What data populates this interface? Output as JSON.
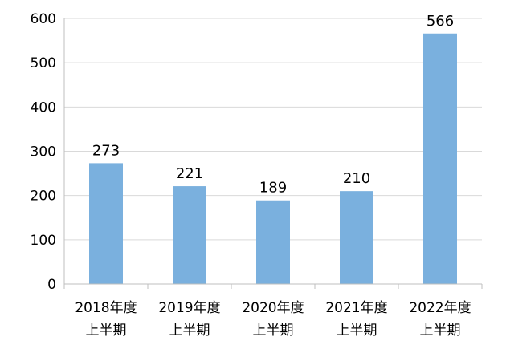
{
  "chart_data": {
    "type": "bar",
    "categories": [
      [
        "2018年度",
        "上半期"
      ],
      [
        "2019年度",
        "上半期"
      ],
      [
        "2020年度",
        "上半期"
      ],
      [
        "2021年度",
        "上半期"
      ],
      [
        "2022年度",
        "上半期"
      ]
    ],
    "values": [
      273,
      221,
      189,
      210,
      566
    ],
    "data_labels": [
      "273",
      "221",
      "189",
      "210",
      "566"
    ],
    "ylim": [
      0,
      600
    ],
    "yticks": [
      0,
      100,
      200,
      300,
      400,
      500,
      600
    ],
    "ytick_labels": [
      "0",
      "100",
      "200",
      "300",
      "400",
      "500",
      "600"
    ],
    "grid": true,
    "legend": "none",
    "bar_color": "#7ab0de",
    "gridline_color": "#d9d9d9",
    "axis_color": "#bfbfbf"
  }
}
